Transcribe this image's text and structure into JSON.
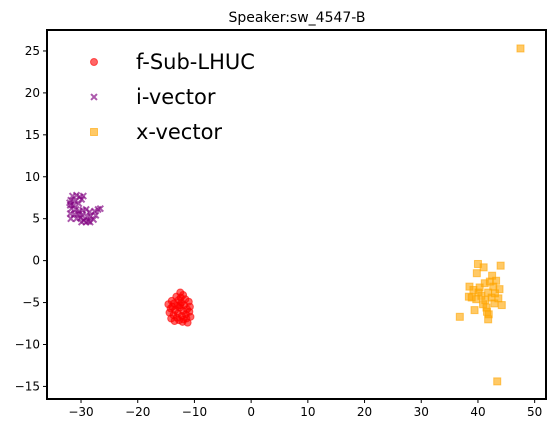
{
  "chart_data": {
    "type": "scatter",
    "title": "Speaker:sw_4547-B",
    "xlabel": "",
    "ylabel": "",
    "xlim": [
      -36,
      52
    ],
    "ylim": [
      -16.5,
      27.5
    ],
    "xticks": [
      -30,
      -20,
      -10,
      0,
      10,
      20,
      30,
      40,
      50
    ],
    "yticks": [
      -15,
      -10,
      -5,
      0,
      5,
      10,
      15,
      20,
      25
    ],
    "grid": false,
    "legend": "top-left",
    "series": [
      {
        "name": "f-Sub-LHUC",
        "marker": "circle",
        "color": "#ff0000",
        "points": [
          [
            -12.5,
            -3.8
          ],
          [
            -12,
            -4.1
          ],
          [
            -13.2,
            -4.3
          ],
          [
            -11.6,
            -4.6
          ],
          [
            -12.8,
            -4.7
          ],
          [
            -14,
            -4.8
          ],
          [
            -11,
            -4.9
          ],
          [
            -12.3,
            -5
          ],
          [
            -13.6,
            -5.1
          ],
          [
            -14.6,
            -5.2
          ],
          [
            -11.8,
            -5.3
          ],
          [
            -13,
            -5.4
          ],
          [
            -10.8,
            -5.5
          ],
          [
            -12.6,
            -5.6
          ],
          [
            -14.2,
            -5.7
          ],
          [
            -11.3,
            -5.8
          ],
          [
            -13.4,
            -5.9
          ],
          [
            -12,
            -6
          ],
          [
            -10.9,
            -6.1
          ],
          [
            -14.4,
            -6.2
          ],
          [
            -12.9,
            -6.3
          ],
          [
            -11.5,
            -6.4
          ],
          [
            -13.7,
            -6.5
          ],
          [
            -12.2,
            -6.6
          ],
          [
            -10.7,
            -6.7
          ],
          [
            -13.1,
            -6.8
          ],
          [
            -14.1,
            -6.9
          ],
          [
            -11.9,
            -7
          ],
          [
            -12.7,
            -7.1
          ],
          [
            -13.5,
            -7.2
          ],
          [
            -12.1,
            -7.3
          ],
          [
            -11.2,
            -7.4
          ],
          [
            -12.4,
            -4.4
          ],
          [
            -13.9,
            -5.5
          ],
          [
            -11.4,
            -6.9
          ],
          [
            -12.5,
            -5.3
          ]
        ]
      },
      {
        "name": "i-vector",
        "marker": "x",
        "color": "#800080",
        "points": [
          [
            -31.5,
            7.7
          ],
          [
            -30.8,
            7.8
          ],
          [
            -30.2,
            7.6
          ],
          [
            -29.6,
            7.7
          ],
          [
            -31.8,
            7.2
          ],
          [
            -31.1,
            7.1
          ],
          [
            -29.9,
            7.3
          ],
          [
            -31.9,
            6.6
          ],
          [
            -31.3,
            6.6
          ],
          [
            -30.4,
            6.8
          ],
          [
            -31.7,
            6.2
          ],
          [
            -30.9,
            6.1
          ],
          [
            -30.3,
            5.9
          ],
          [
            -29.7,
            6
          ],
          [
            -29.1,
            6.1
          ],
          [
            -28.5,
            5.8
          ],
          [
            -27.6,
            5.9
          ],
          [
            -27,
            6.1
          ],
          [
            -26.6,
            6.2
          ],
          [
            -31.9,
            5.6
          ],
          [
            -31.2,
            5.5
          ],
          [
            -30.5,
            5.6
          ],
          [
            -29.8,
            5.4
          ],
          [
            -28.9,
            5.2
          ],
          [
            -28.3,
            5.3
          ],
          [
            -31.8,
            5
          ],
          [
            -30.8,
            5
          ],
          [
            -30.1,
            5.1
          ],
          [
            -29.5,
            4.8
          ],
          [
            -28.7,
            4.7
          ],
          [
            -27.8,
            4.9
          ],
          [
            -29.9,
            4.6
          ],
          [
            -29.1,
            4.6
          ],
          [
            -28.4,
            4.6
          ],
          [
            -27.4,
            5.4
          ],
          [
            -32,
            6.9
          ]
        ]
      },
      {
        "name": "x-vector",
        "marker": "square",
        "color": "#ffa500",
        "points": [
          [
            47.5,
            25.3
          ],
          [
            40,
            -0.4
          ],
          [
            44,
            -0.6
          ],
          [
            41,
            -0.8
          ],
          [
            42.5,
            -1.8
          ],
          [
            39.8,
            -1.5
          ],
          [
            43.2,
            -2.4
          ],
          [
            38.5,
            -3.1
          ],
          [
            41.2,
            -2.7
          ],
          [
            40.3,
            -3.2
          ],
          [
            42.7,
            -3.1
          ],
          [
            43.8,
            -3.4
          ],
          [
            39.2,
            -3.5
          ],
          [
            41.8,
            -3.8
          ],
          [
            43,
            -3.9
          ],
          [
            38.4,
            -4.3
          ],
          [
            40.6,
            -4.2
          ],
          [
            42.4,
            -4.4
          ],
          [
            39.7,
            -4.6
          ],
          [
            41.3,
            -4.7
          ],
          [
            43.6,
            -4.5
          ],
          [
            40.9,
            -5.2
          ],
          [
            42.9,
            -5.1
          ],
          [
            41.5,
            -5.6
          ],
          [
            39.4,
            -5.9
          ],
          [
            44.2,
            -5.3
          ],
          [
            41.6,
            -6.1
          ],
          [
            41.9,
            -6.4
          ],
          [
            36.8,
            -6.7
          ],
          [
            41.8,
            -7
          ],
          [
            43.4,
            -14.4
          ],
          [
            40.1,
            -3.8
          ],
          [
            38.9,
            -4.4
          ],
          [
            42.1,
            -2.5
          ]
        ]
      }
    ]
  }
}
